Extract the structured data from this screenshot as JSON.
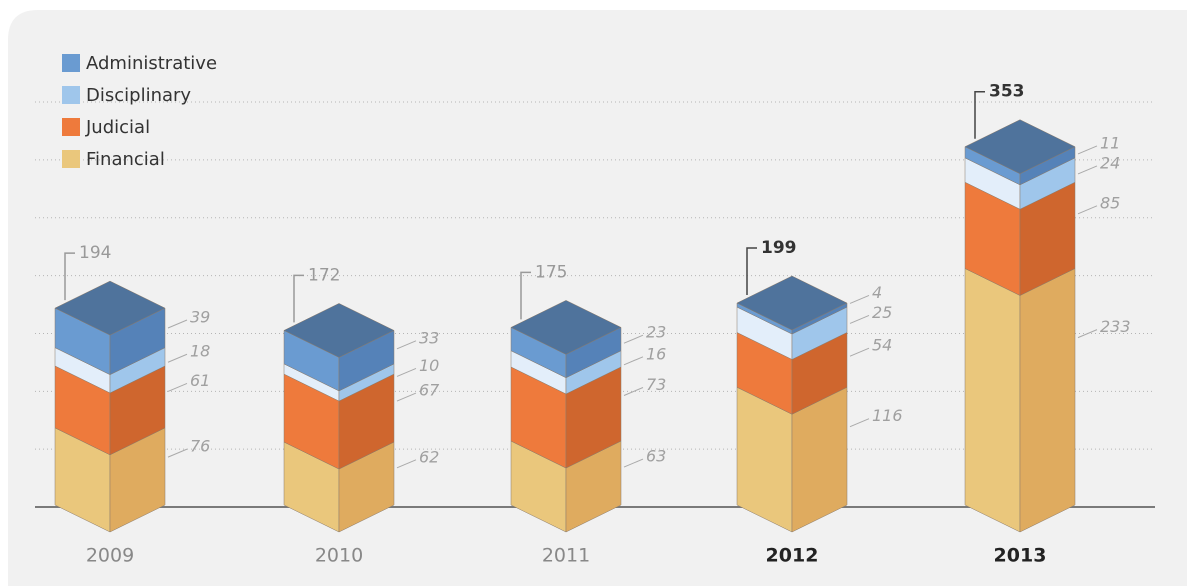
{
  "chart_data": {
    "type": "stacked-bar-3d",
    "categories": [
      "2009",
      "2010",
      "2011",
      "2012",
      "2013"
    ],
    "highlight": [
      false,
      false,
      false,
      true,
      true
    ],
    "totals": [
      194,
      172,
      175,
      199,
      353
    ],
    "series": [
      {
        "name": "Administrative",
        "color": "#6a9bd1",
        "side": "#5582b8",
        "values": [
          39,
          33,
          23,
          4,
          11
        ]
      },
      {
        "name": "Disciplinary",
        "color": "#e3eefa",
        "side": "#9fc6eb",
        "values": [
          18,
          10,
          16,
          25,
          24
        ]
      },
      {
        "name": "Judicial",
        "color": "#ee7a3c",
        "side": "#cf662e",
        "values": [
          61,
          67,
          73,
          54,
          85
        ]
      },
      {
        "name": "Financial",
        "color": "#eac77c",
        "side": "#dfab5f",
        "values": [
          76,
          62,
          63,
          116,
          233
        ]
      }
    ],
    "top_color": "#4f739c",
    "ylim": [
      0,
      400
    ],
    "yticks": [
      55,
      112,
      169,
      226,
      283,
      340,
      397
    ],
    "grid": true
  }
}
